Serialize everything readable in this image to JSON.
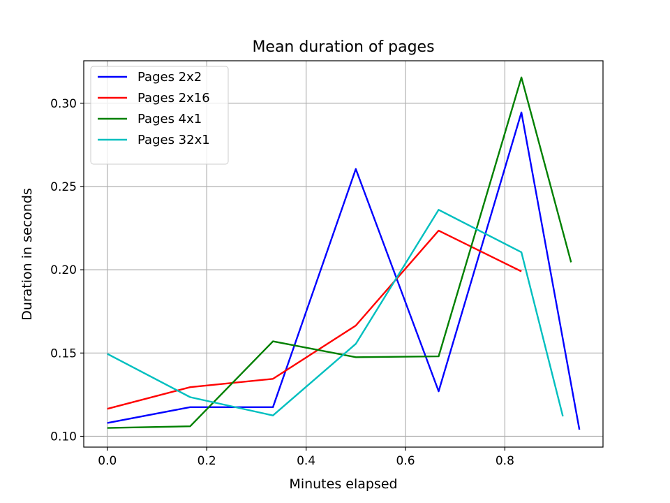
{
  "chart_data": {
    "type": "line",
    "title": "Mean duration of pages",
    "xlabel": "Minutes elapsed",
    "ylabel": "Duration in seconds",
    "xlim": [
      -0.0475,
      0.9975
    ],
    "ylim": [
      0.0935,
      0.3255
    ],
    "xticks": [
      0.0,
      0.2,
      0.4,
      0.6,
      0.8
    ],
    "xtick_labels": [
      "0.0",
      "0.2",
      "0.4",
      "0.6",
      "0.8"
    ],
    "yticks": [
      0.1,
      0.15,
      0.2,
      0.25,
      0.3
    ],
    "ytick_labels": [
      "0.10",
      "0.15",
      "0.20",
      "0.25",
      "0.30"
    ],
    "grid": true,
    "legend_position": "top-left",
    "series": [
      {
        "name": "Pages 2x2",
        "color": "#0000ff",
        "x": [
          0.0,
          0.1667,
          0.3333,
          0.5,
          0.6667,
          0.8333,
          0.95
        ],
        "y": [
          0.108,
          0.1175,
          0.1175,
          0.2605,
          0.127,
          0.2945,
          0.104
        ]
      },
      {
        "name": "Pages 2x16",
        "color": "#ff0000",
        "x": [
          0.0,
          0.1667,
          0.3333,
          0.5,
          0.6667,
          0.8333
        ],
        "y": [
          0.1165,
          0.1295,
          0.1345,
          0.1665,
          0.2235,
          0.199
        ]
      },
      {
        "name": "Pages 4x1",
        "color": "#008000",
        "x": [
          0.0,
          0.1667,
          0.3333,
          0.5,
          0.6667,
          0.8333,
          0.9333
        ],
        "y": [
          0.105,
          0.106,
          0.157,
          0.1475,
          0.148,
          0.3155,
          0.2045
        ]
      },
      {
        "name": "Pages 32x1",
        "color": "#00bfbf",
        "x": [
          0.0,
          0.1667,
          0.3333,
          0.5,
          0.6667,
          0.8333,
          0.9167
        ],
        "y": [
          0.1495,
          0.1235,
          0.1125,
          0.1555,
          0.236,
          0.2105,
          0.112
        ]
      }
    ]
  }
}
